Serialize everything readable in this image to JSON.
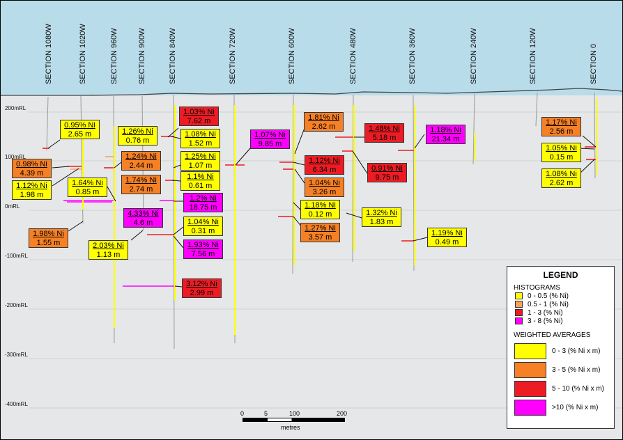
{
  "sections": [
    "SECTION 1080W",
    "SECTION 1020W",
    "SECTION 960W",
    "SECTION 900W",
    "SECTION 840W",
    "SECTION 720W",
    "SECTION 600W",
    "SECTION 480W",
    "SECTION 360W",
    "SECTION 240W",
    "SECTION 120W",
    "SECTION 0"
  ],
  "rl_labels": [
    "200mRL",
    "100mRL",
    "0mRL",
    "-100mRL",
    "-200mRL",
    "-300mRL",
    "-400mRL"
  ],
  "intercepts": [
    {
      "g": "0.95% Ni",
      "w": "2.65 m",
      "c": "cy"
    },
    {
      "g": "0.98% Ni",
      "w": "4.39 m",
      "c": "co"
    },
    {
      "g": "1.12% Ni",
      "w": "1.98 m",
      "c": "cy"
    },
    {
      "g": "1.98% Ni",
      "w": "1.55 m",
      "c": "co"
    },
    {
      "g": "1.64% Ni",
      "w": "0.85 m",
      "c": "cy"
    },
    {
      "g": "1.26% Ni",
      "w": "0.76 m",
      "c": "cy"
    },
    {
      "g": "1.24% Ni",
      "w": "2.44 m",
      "c": "co"
    },
    {
      "g": "1.74% Ni",
      "w": "2.74 m",
      "c": "co"
    },
    {
      "g": "4.33% Ni",
      "w": "4.6 m",
      "c": "cm"
    },
    {
      "g": "2.03% Ni",
      "w": "1.13 m",
      "c": "cy"
    },
    {
      "g": "1.03% Ni",
      "w": "7.62 m",
      "c": "cr"
    },
    {
      "g": "1.08% Ni",
      "w": "1.52 m",
      "c": "cy"
    },
    {
      "g": "1.25% Ni",
      "w": "1.07 m",
      "c": "cy"
    },
    {
      "g": "1.1% Ni",
      "w": "0.61 m",
      "c": "cy"
    },
    {
      "g": "1.2% Ni",
      "w": "18.75 m",
      "c": "cm"
    },
    {
      "g": "1.04% Ni",
      "w": "0.31 m",
      "c": "cy"
    },
    {
      "g": "1.93% Ni",
      "w": "7.56 m",
      "c": "cm"
    },
    {
      "g": "3.12% Ni",
      "w": "2.99 m",
      "c": "cr"
    },
    {
      "g": "1.07% Ni",
      "w": "9.85 m",
      "c": "cm"
    },
    {
      "g": "1.81% Ni",
      "w": "2.62 m",
      "c": "co"
    },
    {
      "g": "1.12% Ni",
      "w": "6.34 m",
      "c": "cr"
    },
    {
      "g": "1.04% Ni",
      "w": "3.26 m",
      "c": "co"
    },
    {
      "g": "1.18% Ni",
      "w": "0.12 m",
      "c": "cy"
    },
    {
      "g": "1.27% Ni",
      "w": "3.57 m",
      "c": "co"
    },
    {
      "g": "1.48% Ni",
      "w": "5.18 m",
      "c": "cr"
    },
    {
      "g": "0.91% Ni",
      "w": "9.75 m",
      "c": "cr"
    },
    {
      "g": "1.32% Ni",
      "w": "1.83 m",
      "c": "cy"
    },
    {
      "g": "1.18% Ni",
      "w": "21.34 m",
      "c": "cm"
    },
    {
      "g": "1.19% Ni",
      "w": "0.49 m",
      "c": "cy"
    },
    {
      "g": "1.17% Ni",
      "w": "2.56 m",
      "c": "co"
    },
    {
      "g": "1.05% Ni",
      "w": "0.15 m",
      "c": "cy"
    },
    {
      "g": "1.08% Ni",
      "w": "2.62 m",
      "c": "cy"
    }
  ],
  "legend": {
    "title": "LEGEND",
    "histograms_title": "HISTOGRAMS",
    "histograms": [
      {
        "label": "0 - 0.5 (% Ni)",
        "color": "#ffff00"
      },
      {
        "label": "0.5 - 1 (% Ni)",
        "color": "#f7a35c"
      },
      {
        "label": "1 - 3 (% Ni)",
        "color": "#ed1c24"
      },
      {
        "label": "3 - 8 (% Ni)",
        "color": "#ff00ff"
      }
    ],
    "wa_title": "WEIGHTED AVERAGES",
    "weighted": [
      {
        "label": "0 - 3 (% Ni x m)",
        "color": "#ffff00"
      },
      {
        "label": "3 - 5 (% Ni x m)",
        "color": "#f58025"
      },
      {
        "label": "5 - 10 (% Ni x m)",
        "color": "#ed1c24"
      },
      {
        "label": ">10 (% Ni x m)",
        "color": "#ff00ff"
      }
    ]
  },
  "scale": {
    "ticks": [
      "0",
      "5",
      "100",
      "200"
    ],
    "unit": "metres"
  }
}
